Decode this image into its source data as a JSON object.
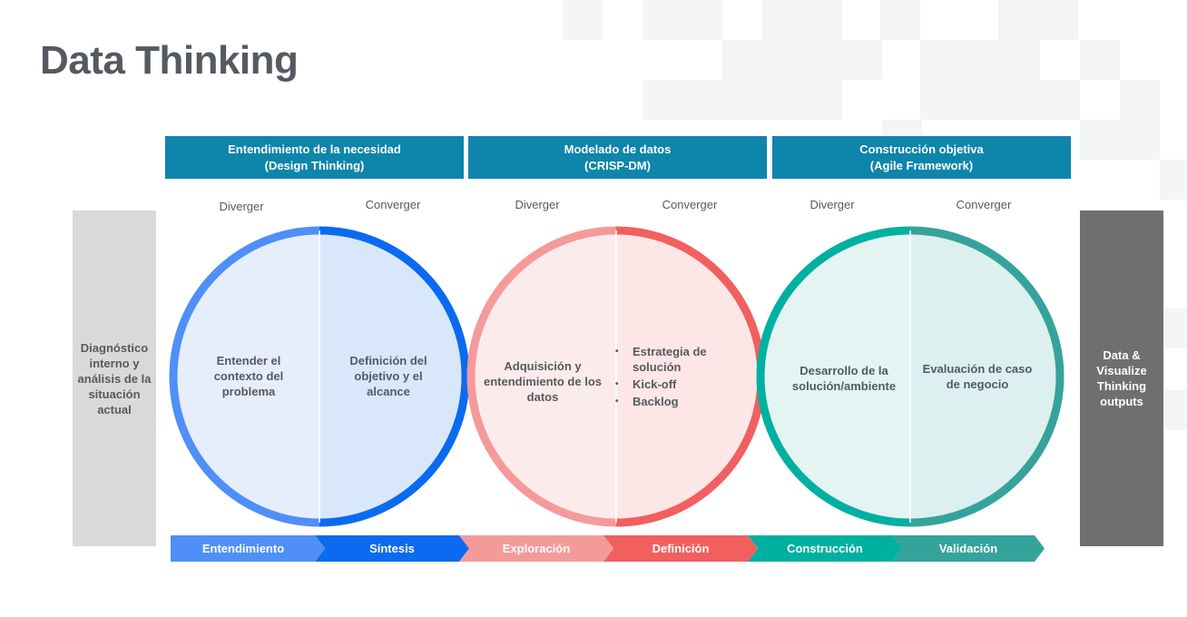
{
  "title": "Data Thinking",
  "phases": [
    {
      "line1": "Entendimiento  de la necesidad",
      "line2": "(Design Thinking)"
    },
    {
      "line1": "Modelado de datos",
      "line2": "(CRISP-DM)"
    },
    {
      "line1": "Construcción objetiva",
      "line2": "(Agile Framework)"
    }
  ],
  "modes": {
    "diverger": "Diverger",
    "converger": "Converger"
  },
  "left_box": {
    "text": "Diagnóstico interno y análisis de la situación actual"
  },
  "right_box": {
    "text": "Data & Visualize Thinking outputs"
  },
  "circles": [
    {
      "left_text": "Entender  el contexto del problema",
      "right_text": "Definición del objetivo y el alcance"
    },
    {
      "left_text": "Adquisición y entendimiento de los datos",
      "right_bullets": [
        "Estrategia de solución",
        "Kick-off",
        "Backlog"
      ]
    },
    {
      "left_text": "Desarrollo de la solución/ambiente",
      "right_text": "Evaluación de caso de negocio"
    }
  ],
  "steps": [
    "Entendimiento",
    "Síntesis",
    "Exploración",
    "Definición",
    "Construcción",
    "Validación"
  ],
  "colors": {
    "header": "#0e85ab",
    "blue_light": "#4f8ff7",
    "blue_dark": "#0a6bf0",
    "red_light": "#f59a9a",
    "red_dark": "#f25f5f",
    "teal_light": "#00b0a0",
    "teal_dark": "#35a39c",
    "left_box": "#d9d9d9",
    "right_box": "#6f6f6f",
    "title": "#555a60"
  }
}
